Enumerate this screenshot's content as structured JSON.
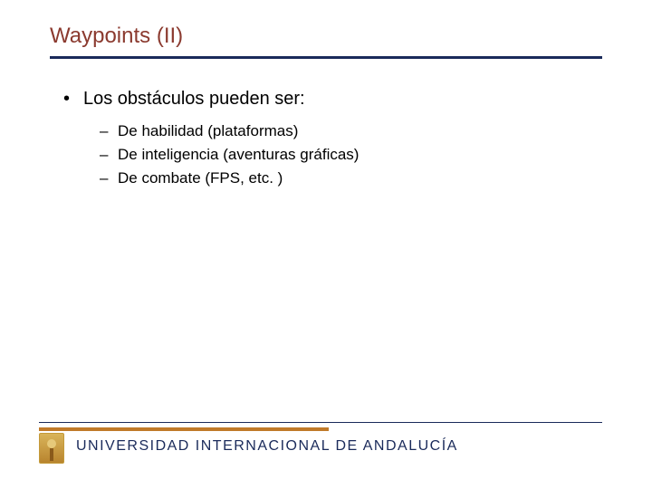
{
  "title": "Waypoints (II)",
  "colors": {
    "title_color": "#8b3a2f",
    "rule_color": "#1a2a5a",
    "text_color": "#000000",
    "footer_accent": "#c07a2a",
    "footer_text": "#1a2a5a",
    "background": "#ffffff"
  },
  "typography": {
    "title_fontsize": 24,
    "bullet1_fontsize": 20,
    "bullet2_fontsize": 17,
    "footer_fontsize": 16
  },
  "bullets": [
    {
      "text": "Los obstáculos pueden ser:",
      "sub": [
        "De habilidad (plataformas)",
        "De inteligencia (aventuras gráficas)",
        "De combate (FPS, etc. )"
      ]
    }
  ],
  "footer": {
    "text": "UNIVERSIDAD INTERNACIONAL DE ANDALUCÍA"
  }
}
